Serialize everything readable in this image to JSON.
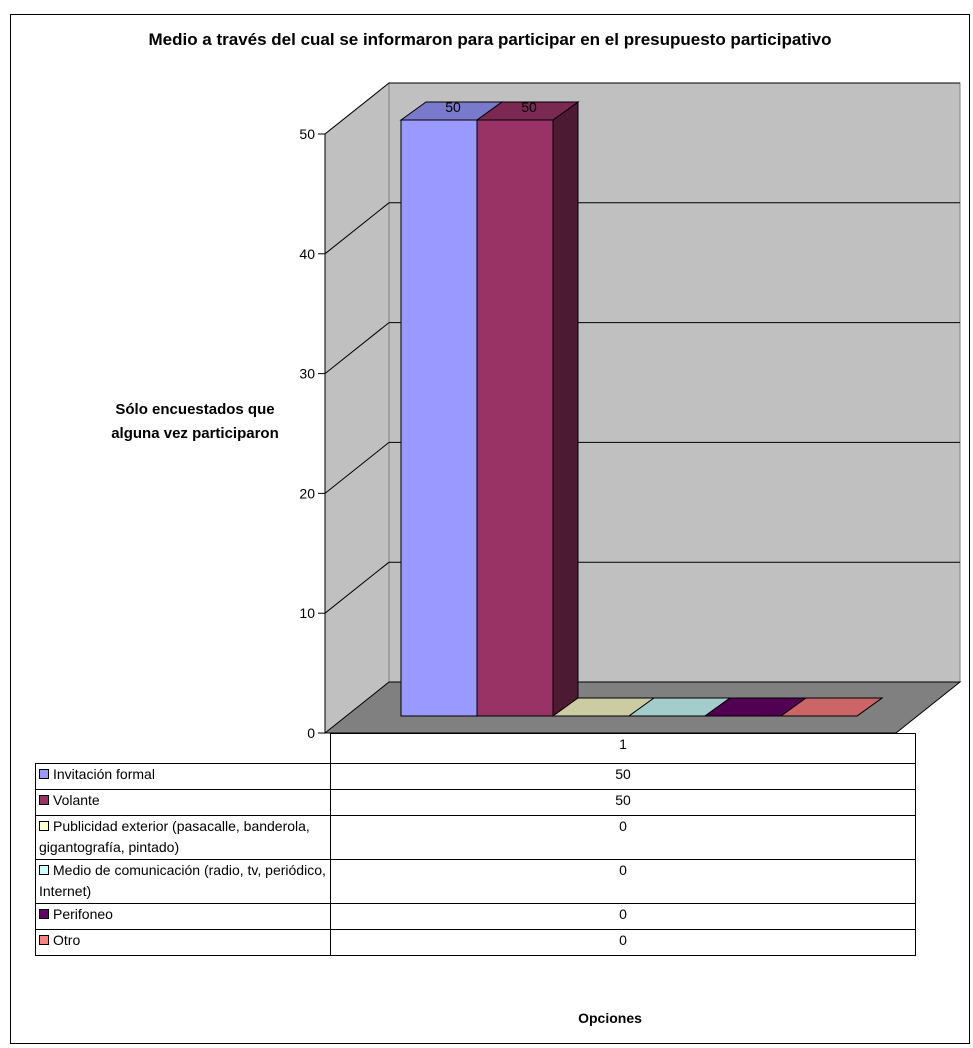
{
  "chart_data": {
    "type": "bar",
    "title": "Medio a través del cual se informaron para participar en el presupuesto participativo",
    "ylabel": "Sólo encuestados que alguna vez participaron",
    "xlabel": "Opciones",
    "categories": [
      "1"
    ],
    "ylim": [
      0,
      50
    ],
    "yticks": [
      "0",
      "10",
      "20",
      "30",
      "40",
      "50"
    ],
    "grid": true,
    "legend": "table-bottom",
    "series": [
      {
        "name": "Invitación formal",
        "values": [
          50
        ],
        "value_label": "50",
        "color": "#9999FF"
      },
      {
        "name": "Volante",
        "values": [
          50
        ],
        "value_label": "50",
        "color": "#993366"
      },
      {
        "name": "Publicidad exterior (pasacalle, banderola, gigantografía, pintado)",
        "values": [
          0
        ],
        "value_label": "0",
        "color": "#FFFFCC"
      },
      {
        "name": "Medio de comunicación (radio, tv, periódico, Internet)",
        "values": [
          0
        ],
        "value_label": "0",
        "color": "#CCFFFF"
      },
      {
        "name": "Perifoneo",
        "values": [
          0
        ],
        "value_label": "0",
        "color": "#660066"
      },
      {
        "name": "Otro",
        "values": [
          0
        ],
        "value_label": "0",
        "color": "#FF8080"
      }
    ],
    "bar_labels": [
      "50",
      "50"
    ]
  },
  "colors": {
    "wall": "#C0C0C0",
    "floor": "#808080",
    "gridline": "#000000"
  }
}
